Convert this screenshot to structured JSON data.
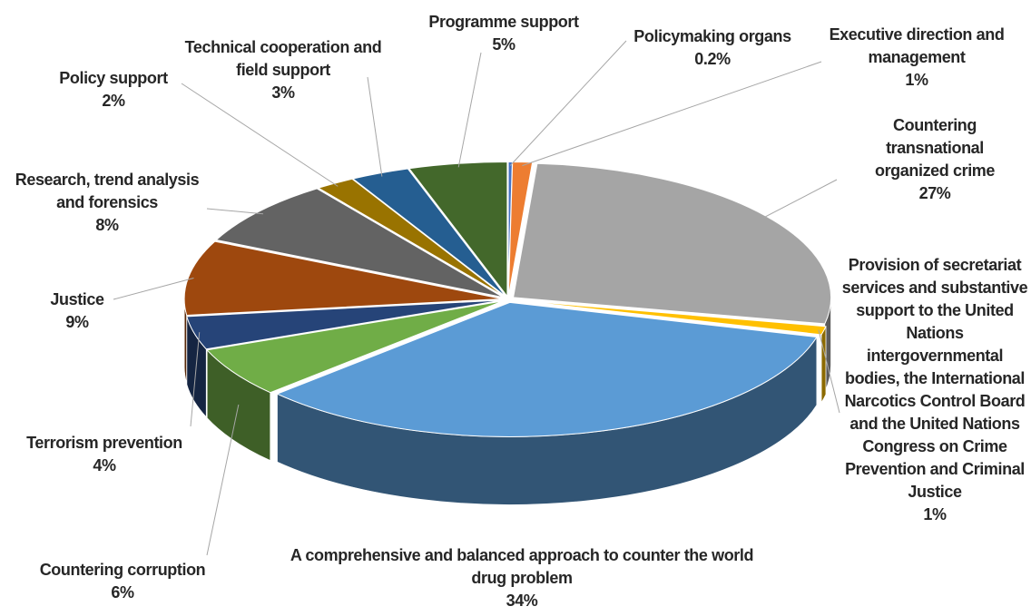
{
  "chart_data": {
    "type": "pie",
    "categories": [
      "Policymaking organs",
      "Executive direction and management",
      "Countering transnational organized crime",
      "Provision of secretariat services and substantive support to the United Nations intergovernmental bodies, the International Narcotics Control Board and the United Nations Congress on Crime Prevention and Criminal Justice",
      "A comprehensive and balanced approach to counter the world drug problem",
      "Countering corruption",
      "Terrorism prevention",
      "Justice",
      "Research, trend analysis and forensics",
      "Policy support",
      "Technical cooperation and field support",
      "Programme support"
    ],
    "values": [
      0.2,
      1,
      27,
      1,
      34,
      6,
      4,
      9,
      8,
      2,
      3,
      5
    ],
    "value_labels": [
      "0.2%",
      "1%",
      "27%",
      "1%",
      "34%",
      "6%",
      "4%",
      "9%",
      "8%",
      "2%",
      "3%",
      "5%"
    ],
    "colors": [
      "#4472c4",
      "#ed7d31",
      "#a5a5a5",
      "#ffc000",
      "#5b9bd5",
      "#70ad47",
      "#264478",
      "#9e480e",
      "#636363",
      "#997300",
      "#255e91",
      "#43682b"
    ]
  }
}
